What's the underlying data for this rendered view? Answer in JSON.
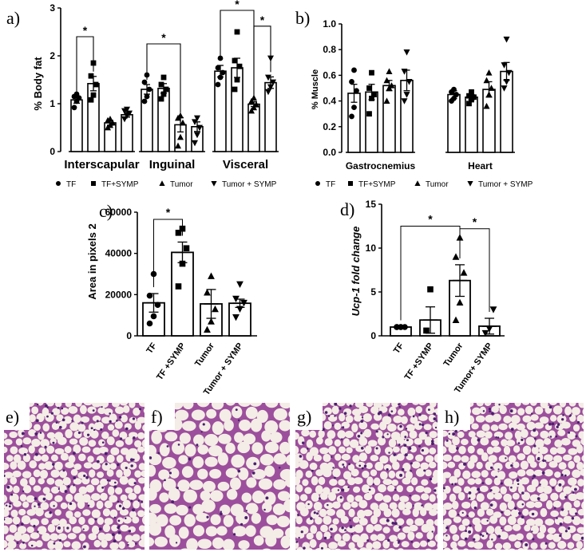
{
  "chart_data": [
    {
      "id": "a",
      "panel_label": "a)",
      "type": "bar",
      "ylabel": "% Body fat",
      "ylim": [
        0,
        3
      ],
      "yticks": [
        "0",
        "1",
        "2",
        "3"
      ],
      "categories": [
        "Interscapular",
        "Inguinal",
        "Visceral"
      ],
      "groups": [
        "TF",
        "TF+SYMP",
        "Tumor",
        "Tumor + SYMP"
      ],
      "series": [
        {
          "name": "TF",
          "values": [
            1.08,
            1.3,
            1.68
          ],
          "err": [
            0.07,
            0.1,
            0.12
          ]
        },
        {
          "name": "TF+SYMP",
          "values": [
            1.42,
            1.32,
            1.75
          ],
          "err": [
            0.15,
            0.1,
            0.2
          ]
        },
        {
          "name": "Tumor",
          "values": [
            0.6,
            0.56,
            0.99
          ],
          "err": [
            0.05,
            0.15,
            0.05
          ]
        },
        {
          "name": "Tumor + SYMP",
          "values": [
            0.77,
            0.52,
            1.44
          ],
          "err": [
            0.05,
            0.1,
            0.12
          ]
        }
      ],
      "points": [
        [
          [
            0.92,
            1.05,
            1.12,
            1.15,
            1.2
          ],
          [
            1.08,
            1.18,
            1.4,
            1.58,
            1.85
          ],
          [
            0.5,
            0.55,
            0.6,
            0.65,
            0.68
          ],
          [
            0.68,
            0.75,
            0.8,
            0.85,
            0.88
          ]
        ],
        [
          [
            1.05,
            1.15,
            1.3,
            1.45,
            1.6
          ],
          [
            1.1,
            1.2,
            1.3,
            1.4,
            1.55
          ],
          [
            0.12,
            0.3,
            0.6,
            0.7,
            0.75
          ],
          [
            0.18,
            0.35,
            0.5,
            0.62,
            0.7
          ]
        ],
        [
          [
            1.4,
            1.55,
            1.65,
            1.75,
            1.95
          ],
          [
            1.3,
            1.5,
            1.78,
            1.9,
            2.5
          ],
          [
            0.85,
            0.92,
            0.98,
            1.05,
            1.12
          ],
          [
            1.25,
            1.35,
            1.45,
            1.55,
            1.95
          ]
        ]
      ],
      "significance": [
        {
          "label": "*",
          "from_cat": 0,
          "from_group": 0,
          "to_cat": 0,
          "to_group": 1,
          "y": 2.4
        },
        {
          "label": "*",
          "from_cat": 1,
          "from_group": 0,
          "to_cat": 1,
          "to_group": 2,
          "y": 2.25
        },
        {
          "label": "*",
          "from_cat": 2,
          "from_group": 0,
          "to_cat": 2,
          "to_group": 2,
          "y": 2.95
        },
        {
          "label": "*",
          "from_cat": 2,
          "from_group": 2,
          "to_cat": 2,
          "to_group": 3,
          "y": 2.62
        }
      ],
      "legend": [
        "TF",
        "TF+SYMP",
        "Tumor",
        "Tumor + SYMP"
      ]
    },
    {
      "id": "b",
      "panel_label": "b)",
      "type": "bar",
      "ylabel": "% Muscle",
      "ylim": [
        0,
        1.0
      ],
      "yticks": [
        "0.0",
        "0.2",
        "0.4",
        "0.6",
        "0.8",
        "1.0"
      ],
      "categories": [
        "Gastrocnemius",
        "Heart"
      ],
      "groups": [
        "TF",
        "TF+SYMP",
        "Tumor",
        "Tumor + SYMP"
      ],
      "series": [
        {
          "name": "TF",
          "values": [
            0.46,
            0.45
          ],
          "err": [
            0.07,
            0.03
          ]
        },
        {
          "name": "TF+SYMP",
          "values": [
            0.47,
            0.43
          ],
          "err": [
            0.06,
            0.02
          ]
        },
        {
          "name": "Tumor",
          "values": [
            0.52,
            0.49
          ],
          "err": [
            0.04,
            0.06
          ]
        },
        {
          "name": "Tumor + SYMP",
          "values": [
            0.56,
            0.63
          ],
          "err": [
            0.08,
            0.07
          ]
        }
      ],
      "points": [
        [
          [
            0.28,
            0.35,
            0.48,
            0.55,
            0.64
          ],
          [
            0.3,
            0.42,
            0.45,
            0.5,
            0.62
          ],
          [
            0.4,
            0.5,
            0.52,
            0.56,
            0.63
          ],
          [
            0.4,
            0.45,
            0.55,
            0.63,
            0.78
          ]
        ],
        [
          [
            0.4,
            0.42,
            0.45,
            0.47,
            0.49
          ],
          [
            0.38,
            0.41,
            0.43,
            0.44,
            0.47
          ],
          [
            0.36,
            0.45,
            0.5,
            0.56,
            0.62
          ],
          [
            0.5,
            0.55,
            0.62,
            0.68,
            0.88
          ]
        ]
      ],
      "significance": [],
      "legend": [
        "TF",
        "TF+SYMP",
        "Tumor",
        "Tumor + SYMP"
      ]
    },
    {
      "id": "c",
      "panel_label": "c)",
      "type": "bar",
      "ylabel": "Area in pixels 2",
      "ylim": [
        0,
        60000
      ],
      "yticks": [
        "0",
        "20000",
        "40000",
        "60000"
      ],
      "categories": [
        "TF",
        "TF +SYMP",
        "Tumor",
        "Tumor + SYMP"
      ],
      "values": [
        16000,
        40500,
        15500,
        15800
      ],
      "err": [
        4500,
        5000,
        7000,
        2000
      ],
      "points": [
        [
          6000,
          9500,
          15000,
          19500,
          30000
        ],
        [
          24000,
          35000,
          42500,
          50000,
          52000
        ],
        [
          3000,
          7000,
          13000,
          21000,
          29000
        ],
        [
          9000,
          13000,
          16000,
          18000,
          25000
        ]
      ],
      "significance": [
        {
          "label": "*",
          "from": 0,
          "to": 1,
          "y": 56500
        }
      ]
    },
    {
      "id": "d",
      "panel_label": "d)",
      "type": "bar",
      "ylabel": "Ucp-1 fold change",
      "ylim": [
        0,
        15
      ],
      "yticks": [
        "0",
        "5",
        "10",
        "15"
      ],
      "categories": [
        "TF",
        "TF +SYMP",
        "Tumor",
        "Tumor+ SYMP"
      ],
      "values": [
        1.0,
        1.8,
        6.3,
        1.1
      ],
      "err": [
        0.05,
        1.5,
        1.8,
        0.9
      ],
      "points": [
        [
          1.0,
          1.0,
          1.0,
          1.0,
          1.0
        ],
        [
          0.6,
          5.3
        ],
        [
          1.8,
          3.8,
          7.2,
          9.0,
          11.2
        ],
        [
          0.3,
          0.8,
          3.0
        ]
      ],
      "significance": [
        {
          "label": "*",
          "from": 0,
          "to": 2,
          "y": 12.5
        },
        {
          "label": "*",
          "from": 2,
          "to": 3,
          "y": 12.2
        }
      ]
    }
  ],
  "histology": [
    {
      "label": "e)",
      "tissue": "dense"
    },
    {
      "label": "f)",
      "tissue": "large"
    },
    {
      "label": "g)",
      "tissue": "dense"
    },
    {
      "label": "h)",
      "tissue": "dense"
    }
  ]
}
